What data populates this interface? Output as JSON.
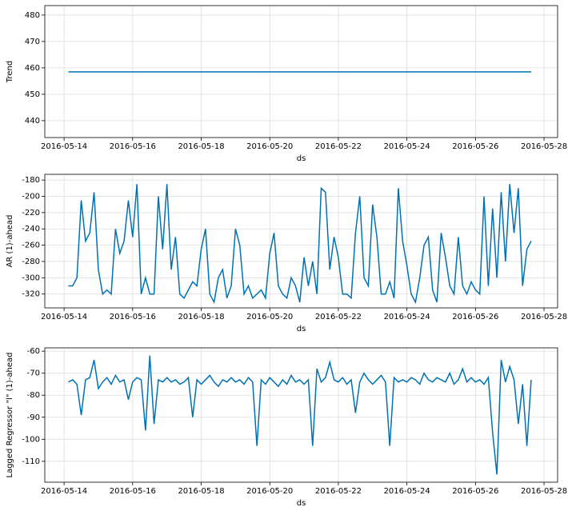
{
  "chart_data": [
    {
      "type": "line",
      "xlabel": "ds",
      "ylabel": "Trend",
      "color": "#0072B2",
      "grid": true,
      "x": [
        "2016-05-14 03:00",
        "2016-05-27 15:00"
      ],
      "values": [
        458.5,
        458.5
      ],
      "xlim": [
        "2016-05-13 10:30",
        "2016-05-28 09:30"
      ],
      "ylim": [
        433.6,
        483.6
      ],
      "xticks": [
        "2016-05-14",
        "2016-05-16",
        "2016-05-18",
        "2016-05-20",
        "2016-05-22",
        "2016-05-24",
        "2016-05-26",
        "2016-05-28"
      ],
      "yticks": [
        440,
        450,
        460,
        470,
        480
      ]
    },
    {
      "type": "line",
      "xlabel": "ds",
      "ylabel": "AR (1)-ahead",
      "color": "#0072B2",
      "grid": true,
      "x": [
        "2016-05-14 03:00",
        "2016-05-14 06:00",
        "2016-05-14 09:00",
        "2016-05-14 12:00",
        "2016-05-14 15:00",
        "2016-05-14 18:00",
        "2016-05-14 21:00",
        "2016-05-15 00:00",
        "2016-05-15 03:00",
        "2016-05-15 06:00",
        "2016-05-15 09:00",
        "2016-05-15 12:00",
        "2016-05-15 15:00",
        "2016-05-15 18:00",
        "2016-05-15 21:00",
        "2016-05-16 00:00",
        "2016-05-16 03:00",
        "2016-05-16 06:00",
        "2016-05-16 09:00",
        "2016-05-16 12:00",
        "2016-05-16 15:00",
        "2016-05-16 18:00",
        "2016-05-16 21:00",
        "2016-05-17 00:00",
        "2016-05-17 03:00",
        "2016-05-17 06:00",
        "2016-05-17 09:00",
        "2016-05-17 12:00",
        "2016-05-17 15:00",
        "2016-05-17 18:00",
        "2016-05-17 21:00",
        "2016-05-18 00:00",
        "2016-05-18 03:00",
        "2016-05-18 06:00",
        "2016-05-18 09:00",
        "2016-05-18 12:00",
        "2016-05-18 15:00",
        "2016-05-18 18:00",
        "2016-05-18 21:00",
        "2016-05-19 00:00",
        "2016-05-19 03:00",
        "2016-05-19 06:00",
        "2016-05-19 09:00",
        "2016-05-19 12:00",
        "2016-05-19 15:00",
        "2016-05-19 18:00",
        "2016-05-19 21:00",
        "2016-05-20 00:00",
        "2016-05-20 03:00",
        "2016-05-20 06:00",
        "2016-05-20 09:00",
        "2016-05-20 12:00",
        "2016-05-20 15:00",
        "2016-05-20 18:00",
        "2016-05-20 21:00",
        "2016-05-21 00:00",
        "2016-05-21 03:00",
        "2016-05-21 06:00",
        "2016-05-21 09:00",
        "2016-05-21 12:00",
        "2016-05-21 15:00",
        "2016-05-21 18:00",
        "2016-05-21 21:00",
        "2016-05-22 00:00",
        "2016-05-22 03:00",
        "2016-05-22 06:00",
        "2016-05-22 09:00",
        "2016-05-22 12:00",
        "2016-05-22 15:00",
        "2016-05-22 18:00",
        "2016-05-22 21:00",
        "2016-05-23 00:00",
        "2016-05-23 03:00",
        "2016-05-23 06:00",
        "2016-05-23 09:00",
        "2016-05-23 12:00",
        "2016-05-23 15:00",
        "2016-05-23 18:00",
        "2016-05-23 21:00",
        "2016-05-24 00:00",
        "2016-05-24 03:00",
        "2016-05-24 06:00",
        "2016-05-24 09:00",
        "2016-05-24 12:00",
        "2016-05-24 15:00",
        "2016-05-24 18:00",
        "2016-05-24 21:00",
        "2016-05-25 00:00",
        "2016-05-25 03:00",
        "2016-05-25 06:00",
        "2016-05-25 09:00",
        "2016-05-25 12:00",
        "2016-05-25 15:00",
        "2016-05-25 18:00",
        "2016-05-25 21:00",
        "2016-05-26 00:00",
        "2016-05-26 03:00",
        "2016-05-26 06:00",
        "2016-05-26 09:00",
        "2016-05-26 12:00",
        "2016-05-26 15:00",
        "2016-05-26 18:00",
        "2016-05-26 21:00",
        "2016-05-27 00:00",
        "2016-05-27 03:00",
        "2016-05-27 06:00",
        "2016-05-27 09:00",
        "2016-05-27 12:00",
        "2016-05-27 15:00"
      ],
      "values": [
        -310,
        -310,
        -300,
        -205,
        -255,
        -245,
        -195,
        -290,
        -320,
        -315,
        -320,
        -240,
        -270,
        -255,
        -205,
        -250,
        -185,
        -320,
        -300,
        -320,
        -320,
        -200,
        -265,
        -185,
        -290,
        -250,
        -320,
        -325,
        -315,
        -305,
        -310,
        -265,
        -240,
        -320,
        -330,
        -300,
        -290,
        -325,
        -310,
        -240,
        -260,
        -320,
        -310,
        -325,
        -320,
        -315,
        -325,
        -270,
        -245,
        -310,
        -320,
        -325,
        -300,
        -310,
        -330,
        -275,
        -310,
        -280,
        -320,
        -190,
        -195,
        -290,
        -250,
        -275,
        -320,
        -320,
        -325,
        -245,
        -200,
        -300,
        -310,
        -210,
        -250,
        -320,
        -320,
        -305,
        -325,
        -190,
        -255,
        -285,
        -320,
        -330,
        -300,
        -260,
        -250,
        -315,
        -330,
        -245,
        -275,
        -310,
        -320,
        -250,
        -310,
        -320,
        -305,
        -315,
        -320,
        -200,
        -310,
        -215,
        -300,
        -195,
        -280,
        -185,
        -245,
        -190,
        -310,
        -265,
        -255
      ],
      "xlim": [
        "2016-05-13 10:30",
        "2016-05-28 09:30"
      ],
      "ylim": [
        -337,
        -173
      ],
      "xticks": [
        "2016-05-14",
        "2016-05-16",
        "2016-05-18",
        "2016-05-20",
        "2016-05-22",
        "2016-05-24",
        "2016-05-26",
        "2016-05-28"
      ],
      "yticks": [
        -320,
        -300,
        -280,
        -260,
        -240,
        -220,
        -200,
        -180
      ]
    },
    {
      "type": "line",
      "xlabel": "ds",
      "ylabel": "Lagged Regressor \"l\" (1)-ahead",
      "color": "#0072B2",
      "grid": true,
      "x": [
        "2016-05-14 03:00",
        "2016-05-14 06:00",
        "2016-05-14 09:00",
        "2016-05-14 12:00",
        "2016-05-14 15:00",
        "2016-05-14 18:00",
        "2016-05-14 21:00",
        "2016-05-15 00:00",
        "2016-05-15 03:00",
        "2016-05-15 06:00",
        "2016-05-15 09:00",
        "2016-05-15 12:00",
        "2016-05-15 15:00",
        "2016-05-15 18:00",
        "2016-05-15 21:00",
        "2016-05-16 00:00",
        "2016-05-16 03:00",
        "2016-05-16 06:00",
        "2016-05-16 09:00",
        "2016-05-16 12:00",
        "2016-05-16 15:00",
        "2016-05-16 18:00",
        "2016-05-16 21:00",
        "2016-05-17 00:00",
        "2016-05-17 03:00",
        "2016-05-17 06:00",
        "2016-05-17 09:00",
        "2016-05-17 12:00",
        "2016-05-17 15:00",
        "2016-05-17 18:00",
        "2016-05-17 21:00",
        "2016-05-18 00:00",
        "2016-05-18 03:00",
        "2016-05-18 06:00",
        "2016-05-18 09:00",
        "2016-05-18 12:00",
        "2016-05-18 15:00",
        "2016-05-18 18:00",
        "2016-05-18 21:00",
        "2016-05-19 00:00",
        "2016-05-19 03:00",
        "2016-05-19 06:00",
        "2016-05-19 09:00",
        "2016-05-19 12:00",
        "2016-05-19 15:00",
        "2016-05-19 18:00",
        "2016-05-19 21:00",
        "2016-05-20 00:00",
        "2016-05-20 03:00",
        "2016-05-20 06:00",
        "2016-05-20 09:00",
        "2016-05-20 12:00",
        "2016-05-20 15:00",
        "2016-05-20 18:00",
        "2016-05-20 21:00",
        "2016-05-21 00:00",
        "2016-05-21 03:00",
        "2016-05-21 06:00",
        "2016-05-21 09:00",
        "2016-05-21 12:00",
        "2016-05-21 15:00",
        "2016-05-21 18:00",
        "2016-05-21 21:00",
        "2016-05-22 00:00",
        "2016-05-22 03:00",
        "2016-05-22 06:00",
        "2016-05-22 09:00",
        "2016-05-22 12:00",
        "2016-05-22 15:00",
        "2016-05-22 18:00",
        "2016-05-22 21:00",
        "2016-05-23 00:00",
        "2016-05-23 03:00",
        "2016-05-23 06:00",
        "2016-05-23 09:00",
        "2016-05-23 12:00",
        "2016-05-23 15:00",
        "2016-05-23 18:00",
        "2016-05-23 21:00",
        "2016-05-24 00:00",
        "2016-05-24 03:00",
        "2016-05-24 06:00",
        "2016-05-24 09:00",
        "2016-05-24 12:00",
        "2016-05-24 15:00",
        "2016-05-24 18:00",
        "2016-05-24 21:00",
        "2016-05-25 00:00",
        "2016-05-25 03:00",
        "2016-05-25 06:00",
        "2016-05-25 09:00",
        "2016-05-25 12:00",
        "2016-05-25 15:00",
        "2016-05-25 18:00",
        "2016-05-25 21:00",
        "2016-05-26 00:00",
        "2016-05-26 03:00",
        "2016-05-26 06:00",
        "2016-05-26 09:00",
        "2016-05-26 12:00",
        "2016-05-26 15:00",
        "2016-05-26 18:00",
        "2016-05-26 21:00",
        "2016-05-27 00:00",
        "2016-05-27 03:00",
        "2016-05-27 06:00",
        "2016-05-27 09:00",
        "2016-05-27 12:00",
        "2016-05-27 15:00"
      ],
      "values": [
        -74,
        -73,
        -75,
        -89,
        -73,
        -72,
        -64,
        -77,
        -74,
        -72,
        -75,
        -71,
        -74,
        -73,
        -82,
        -74,
        -72,
        -73,
        -96,
        -62,
        -93,
        -73,
        -74,
        -72,
        -74,
        -73,
        -75,
        -74,
        -72,
        -90,
        -73,
        -75,
        -73,
        -71,
        -74,
        -76,
        -73,
        -74,
        -72,
        -74,
        -73,
        -75,
        -72,
        -74,
        -103,
        -73,
        -75,
        -72,
        -74,
        -76,
        -73,
        -75,
        -71,
        -74,
        -73,
        -75,
        -73,
        -103,
        -68,
        -74,
        -72,
        -65,
        -73,
        -74,
        -72,
        -75,
        -73,
        -88,
        -74,
        -70,
        -73,
        -75,
        -73,
        -71,
        -74,
        -103,
        -72,
        -74,
        -73,
        -74,
        -72,
        -73,
        -75,
        -70,
        -73,
        -74,
        -72,
        -73,
        -74,
        -70,
        -75,
        -73,
        -68,
        -74,
        -72,
        -74,
        -73,
        -75,
        -72,
        -97,
        -116,
        -64,
        -74,
        -67,
        -73,
        -93,
        -75,
        -103,
        -73
      ],
      "xlim": [
        "2016-05-13 10:30",
        "2016-05-28 09:30"
      ],
      "ylim": [
        -119.5,
        -58.5
      ],
      "xticks": [
        "2016-05-14",
        "2016-05-16",
        "2016-05-18",
        "2016-05-20",
        "2016-05-22",
        "2016-05-24",
        "2016-05-26",
        "2016-05-28"
      ],
      "yticks": [
        -110,
        -100,
        -90,
        -80,
        -70,
        -60
      ]
    }
  ]
}
